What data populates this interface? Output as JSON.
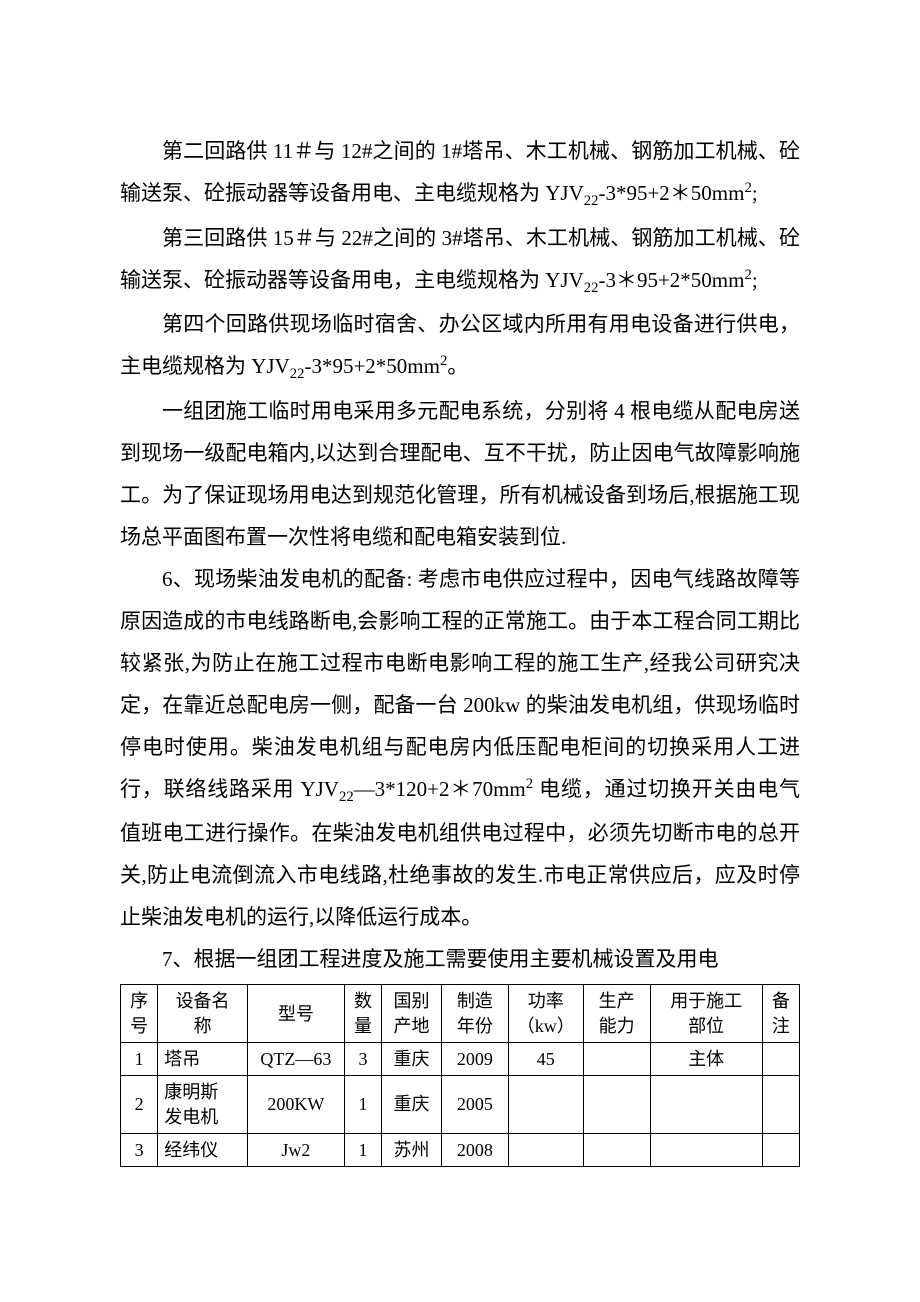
{
  "paragraphs": [
    {
      "indent": true,
      "html": "第二回路供 11＃与 12#之间的 1#塔吊、木工机械、钢筋加工机械、砼输送泵、砼振动器等设备用电、主电缆规格为 YJV<sub>22</sub>-3*95+2＊50mm<sup>2</sup>;"
    },
    {
      "indent": true,
      "html": "第三回路供 15＃与 22#之间的 3#塔吊、木工机械、钢筋加工机械、砼输送泵、砼振动器等设备用电，主电缆规格为 YJV<sub>22</sub>-3＊95+2*50mm<sup>2</sup>;"
    },
    {
      "indent": true,
      "html": "第四个回路供现场临时宿舍、办公区域内所用有用电设备进行供电，主电缆规格为 YJV<sub>22</sub>-3*95+2*50mm<sup>2</sup>。"
    },
    {
      "indent": true,
      "html": "一组团施工临时用电采用多元配电系统，分别将 4 根电缆从配电房送到现场一级配电箱内,以达到合理配电、互不干扰，防止因电气故障影响施工。为了保证现场用电达到规范化管理，所有机械设备到场后,根据施工现场总平面图布置一次性将电缆和配电箱安装到位."
    },
    {
      "indent": true,
      "html": "6、现场柴油发电机的配备: 考虑市电供应过程中，因电气线路故障等原因造成的市电线路断电,会影响工程的正常施工。由于本工程合同工期比较紧张,为防止在施工过程市电断电影响工程的施工生产,经我公司研究决定，在靠近总配电房一侧，配备一台 200kw 的柴油发电机组，供现场临时停电时使用。柴油发电机组与配电房内低压配电柜间的切换采用人工进行，联络线路采用 YJV<sub>22</sub>—3*120+2＊70mm<sup>2</sup> 电缆，通过切换开关由电气值班电工进行操作。在柴油发电机组供电过程中，必须先切断市电的总开关,防止电流倒流入市电线路,杜绝事故的发生.市电正常供应后，应及时停止柴油发电机的运行,以降低运行成本。"
    },
    {
      "indent": true,
      "html": "7、根据一组团工程进度及施工需要使用主要机械设置及用电"
    }
  ],
  "table": {
    "headers": [
      "序号",
      "设备名称",
      "型号",
      "数量",
      "国别产地",
      "制造年份",
      "功率（kw）",
      "生产能力",
      "用于施工部位",
      "备注"
    ],
    "header_lines": [
      [
        "序",
        "号"
      ],
      [
        "设备名",
        "称"
      ],
      [
        "型号"
      ],
      [
        "数",
        "量"
      ],
      [
        "国别",
        "产地"
      ],
      [
        "制造",
        "年份"
      ],
      [
        "功率",
        "（kw）"
      ],
      [
        "生产",
        "能力"
      ],
      [
        "用于施工",
        "部位"
      ],
      [
        "备",
        "注"
      ]
    ],
    "col_align": [
      "center",
      "left",
      "center",
      "center",
      "center",
      "center",
      "center",
      "center",
      "center",
      "center"
    ],
    "rows": [
      [
        "1",
        "塔吊",
        "QTZ—63",
        "3",
        "重庆",
        "2009",
        "45",
        "",
        "主体",
        ""
      ],
      [
        "2",
        "康明斯发电机",
        "200KW",
        "1",
        "重庆",
        "2005",
        "",
        "",
        "",
        ""
      ],
      [
        "3",
        "经纬仪",
        "Jw2",
        "1",
        "苏州",
        "2008",
        "",
        "",
        "",
        ""
      ]
    ],
    "row2_name_lines": [
      "康明斯",
      "发电机"
    ]
  }
}
